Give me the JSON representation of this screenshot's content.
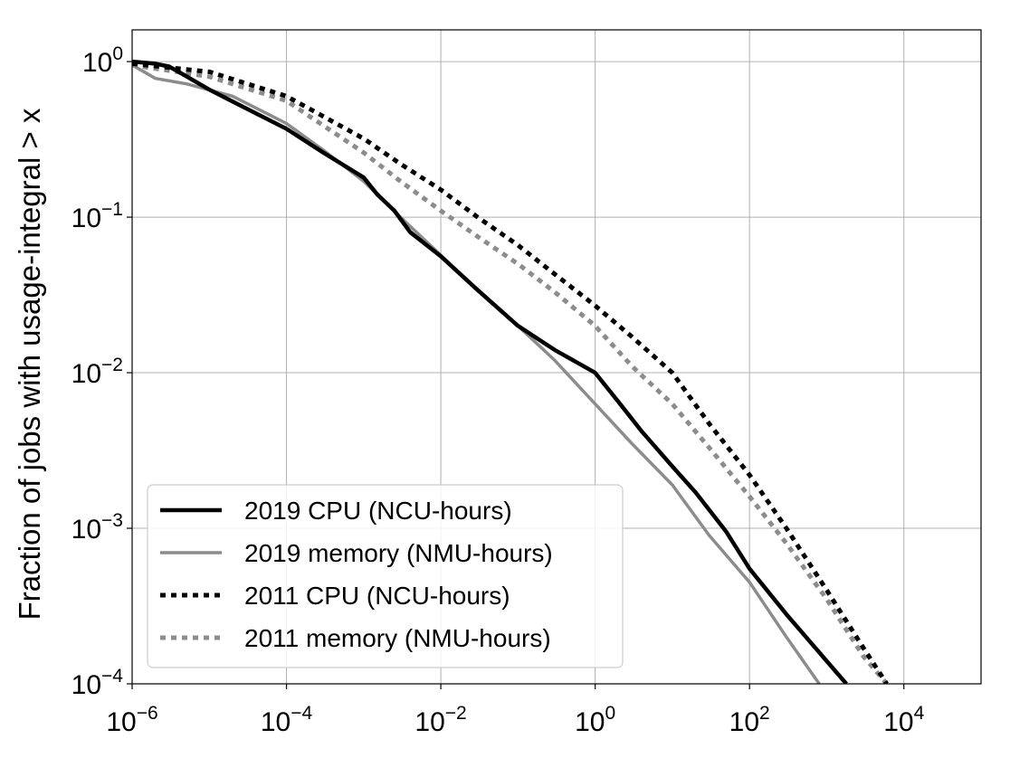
{
  "chart_data": {
    "type": "line",
    "title": "",
    "xlabel": "",
    "ylabel": "Fraction of jobs with usage-integral  > x",
    "x_scale": "log",
    "y_scale": "log",
    "xlim": [
      1e-06,
      100000.0
    ],
    "ylim": [
      0.0001,
      1.6
    ],
    "grid": true,
    "legend_position": "lower-left",
    "x_ticks": [
      {
        "base": "10",
        "exp": "−6",
        "value": 1e-06
      },
      {
        "base": "10",
        "exp": "−4",
        "value": 0.0001
      },
      {
        "base": "10",
        "exp": "−2",
        "value": 0.01
      },
      {
        "base": "10",
        "exp": "0",
        "value": 1
      },
      {
        "base": "10",
        "exp": "2",
        "value": 100
      },
      {
        "base": "10",
        "exp": "4",
        "value": 10000
      }
    ],
    "y_ticks": [
      {
        "base": "10",
        "exp": "0",
        "value": 1
      },
      {
        "base": "10",
        "exp": "−1",
        "value": 0.1
      },
      {
        "base": "10",
        "exp": "−2",
        "value": 0.01
      },
      {
        "base": "10",
        "exp": "−3",
        "value": 0.001
      },
      {
        "base": "10",
        "exp": "−4",
        "value": 0.0001
      }
    ],
    "series": [
      {
        "name": "2019 CPU (NCU-hours)",
        "color": "#000000",
        "style": "solid",
        "x": [
          1e-06,
          2e-06,
          3e-06,
          4e-06,
          1e-05,
          3e-05,
          0.0001,
          0.0003,
          0.001,
          0.0015,
          0.0025,
          0.004,
          0.01,
          0.03,
          0.1,
          0.3,
          1,
          2,
          4,
          10,
          20,
          50,
          100,
          300,
          1000,
          1800
        ],
        "y": [
          1.0,
          0.97,
          0.93,
          0.86,
          0.66,
          0.5,
          0.37,
          0.26,
          0.18,
          0.14,
          0.11,
          0.08,
          0.056,
          0.034,
          0.02,
          0.014,
          0.01,
          0.0065,
          0.0042,
          0.0025,
          0.0017,
          0.00095,
          0.00055,
          0.00028,
          0.00014,
          0.0001
        ]
      },
      {
        "name": "2019 memory (NMU-hours)",
        "color": "#8c8c8c",
        "style": "solid",
        "x": [
          1e-06,
          2e-06,
          5e-06,
          2e-05,
          0.0001,
          0.0003,
          0.001,
          0.003,
          0.01,
          0.03,
          0.1,
          0.3,
          1,
          3,
          10,
          30,
          100,
          300,
          800
        ],
        "y": [
          0.95,
          0.78,
          0.72,
          0.6,
          0.4,
          0.27,
          0.17,
          0.1,
          0.057,
          0.034,
          0.02,
          0.012,
          0.0063,
          0.0035,
          0.0019,
          0.0009,
          0.00045,
          0.0002,
          0.0001
        ]
      },
      {
        "name": "2011 CPU (NCU-hours)",
        "color": "#000000",
        "style": "dotted",
        "x": [
          1e-06,
          1e-05,
          0.0001,
          0.001,
          0.003,
          0.01,
          0.03,
          0.1,
          0.3,
          1,
          3,
          10,
          30,
          100,
          300,
          1000,
          3000,
          6000
        ],
        "y": [
          0.97,
          0.86,
          0.6,
          0.32,
          0.22,
          0.15,
          0.1,
          0.066,
          0.043,
          0.027,
          0.017,
          0.01,
          0.0047,
          0.0022,
          0.001,
          0.0004,
          0.00017,
          0.0001
        ]
      },
      {
        "name": "2011 memory (NMU-hours)",
        "color": "#8c8c8c",
        "style": "dotted",
        "x": [
          1e-06,
          1e-05,
          0.0001,
          0.001,
          0.003,
          0.01,
          0.03,
          0.1,
          0.3,
          1,
          3,
          10,
          30,
          100,
          300,
          1000,
          3000,
          6000
        ],
        "y": [
          0.95,
          0.8,
          0.56,
          0.26,
          0.17,
          0.11,
          0.075,
          0.05,
          0.033,
          0.02,
          0.011,
          0.0063,
          0.0033,
          0.0016,
          0.0008,
          0.00035,
          0.00015,
          0.0001
        ]
      }
    ]
  }
}
